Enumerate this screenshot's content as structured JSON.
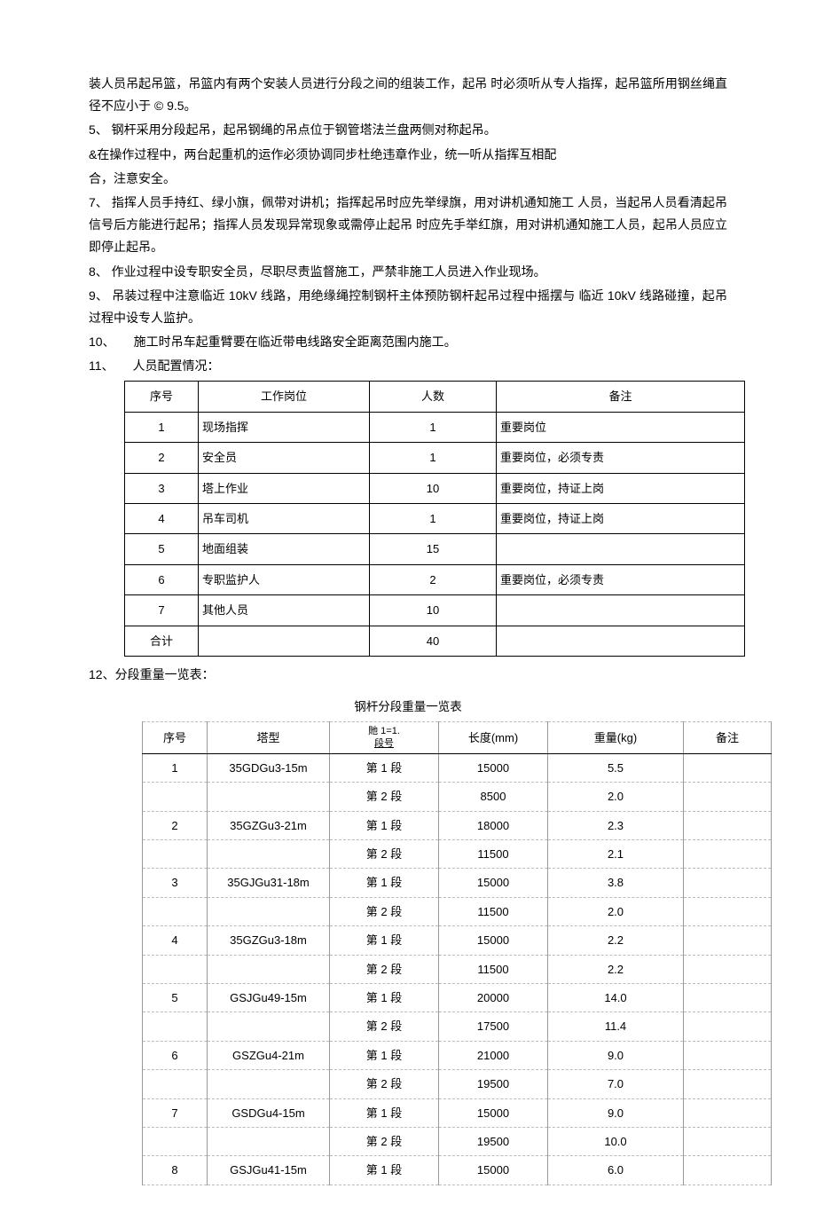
{
  "paragraphs": {
    "p1": "装人员吊起吊篮，吊篮内有两个安装人员进行分段之间的组装工作，起吊 时必须听从专人指挥，起吊篮所用钢丝绳直径不应小于 © 9.5。",
    "p2": "5、 钢杆采用分段起吊，起吊钢绳的吊点位于钢管塔法兰盘两侧对称起吊。",
    "p3": "&在操作过程中，两台起重机的运作必须协调同步杜绝违章作业，统一听从指挥互相配",
    "p4": "合，注意安全。",
    "p5": "7、 指挥人员手持红、绿小旗，佩带对讲机；指挥起吊时应先举绿旗，用对讲机通知施工 人员，当起吊人员看清起吊信号后方能进行起吊；指挥人员发现异常现象或需停止起吊 时应先手举红旗，用对讲机通知施工人员，起吊人员应立即停止起吊。",
    "p6": "8、 作业过程中设专职安全员，尽职尽责监督施工，严禁非施工人员进入作业现场。",
    "p7": "9、 吊装过程中注意临近 10kV 线路，用绝缘绳控制钢杆主体预防钢杆起吊过程中摇摆与 临近 10kV 线路碰撞，起吊过程中设专人监护。",
    "p8": "10、　　施工时吊车起重臂要在临近带电线路安全距离范围内施工。",
    "p9": "11、　　人员配置情况：",
    "p10": "12、分段重量一览表：",
    "caption": "钢杆分段重量一览表"
  },
  "personnel_table": {
    "headers": [
      "序号",
      "工作岗位",
      "人数",
      "备注"
    ],
    "rows": [
      [
        "1",
        "现场指挥",
        "1",
        "重要岗位"
      ],
      [
        "2",
        "安全员",
        "1",
        "重要岗位，必须专责"
      ],
      [
        "3",
        "塔上作业",
        "10",
        "重要岗位，持证上岗"
      ],
      [
        "4",
        "吊车司机",
        "1",
        "重要岗位，持证上岗"
      ],
      [
        "5",
        "地面组装",
        "15",
        ""
      ],
      [
        "6",
        "专职监护人",
        "2",
        "重要岗位，必须专责"
      ],
      [
        "7",
        "其他人员",
        "10",
        ""
      ],
      [
        "合计",
        "",
        "40",
        ""
      ]
    ]
  },
  "weight_table": {
    "headers": {
      "seq": "序号",
      "type": "塔型",
      "seg_top": "貤 1=1.",
      "seg_bot": "段号",
      "len": "长度(mm)",
      "wt": "重量(kg)",
      "note": "备注"
    },
    "rows": [
      {
        "seq": "1",
        "type": "35GDGu3-15m",
        "seg": "第 1 段",
        "len": "15000",
        "wt": "5.5",
        "note": ""
      },
      {
        "seq": "",
        "type": "",
        "seg": "第 2 段",
        "len": "8500",
        "wt": "2.0",
        "note": ""
      },
      {
        "seq": "2",
        "type": "35GZGu3-21m",
        "seg": "第 1 段",
        "len": "18000",
        "wt": "2.3",
        "note": ""
      },
      {
        "seq": "",
        "type": "",
        "seg": "第 2 段",
        "len": "11500",
        "wt": "2.1",
        "note": ""
      },
      {
        "seq": "3",
        "type": "35GJGu31-18m",
        "seg": "第 1 段",
        "len": "15000",
        "wt": "3.8",
        "note": ""
      },
      {
        "seq": "",
        "type": "",
        "seg": "第 2 段",
        "len": "11500",
        "wt": "2.0",
        "note": ""
      },
      {
        "seq": "4",
        "type": "35GZGu3-18m",
        "seg": "第 1 段",
        "len": "15000",
        "wt": "2.2",
        "note": ""
      },
      {
        "seq": "",
        "type": "",
        "seg": "第 2 段",
        "len": "11500",
        "wt": "2.2",
        "note": ""
      },
      {
        "seq": "5",
        "type": "GSJGu49-15m",
        "seg": "第 1 段",
        "len": "20000",
        "wt": "14.0",
        "note": ""
      },
      {
        "seq": "",
        "type": "",
        "seg": "第 2 段",
        "len": "17500",
        "wt": "11.4",
        "note": ""
      },
      {
        "seq": "6",
        "type": "GSZGu4-21m",
        "seg": "第 1 段",
        "len": "21000",
        "wt": "9.0",
        "note": ""
      },
      {
        "seq": "",
        "type": "",
        "seg": "第 2 段",
        "len": "19500",
        "wt": "7.0",
        "note": ""
      },
      {
        "seq": "7",
        "type": "GSDGu4-15m",
        "seg": "第 1 段",
        "len": "15000",
        "wt": "9.0",
        "note": ""
      },
      {
        "seq": "",
        "type": "",
        "seg": "第 2 段",
        "len": "19500",
        "wt": "10.0",
        "note": ""
      },
      {
        "seq": "8",
        "type": "GSJGu41-15m",
        "seg": "第 1 段",
        "len": "15000",
        "wt": "6.0",
        "note": ""
      }
    ]
  }
}
